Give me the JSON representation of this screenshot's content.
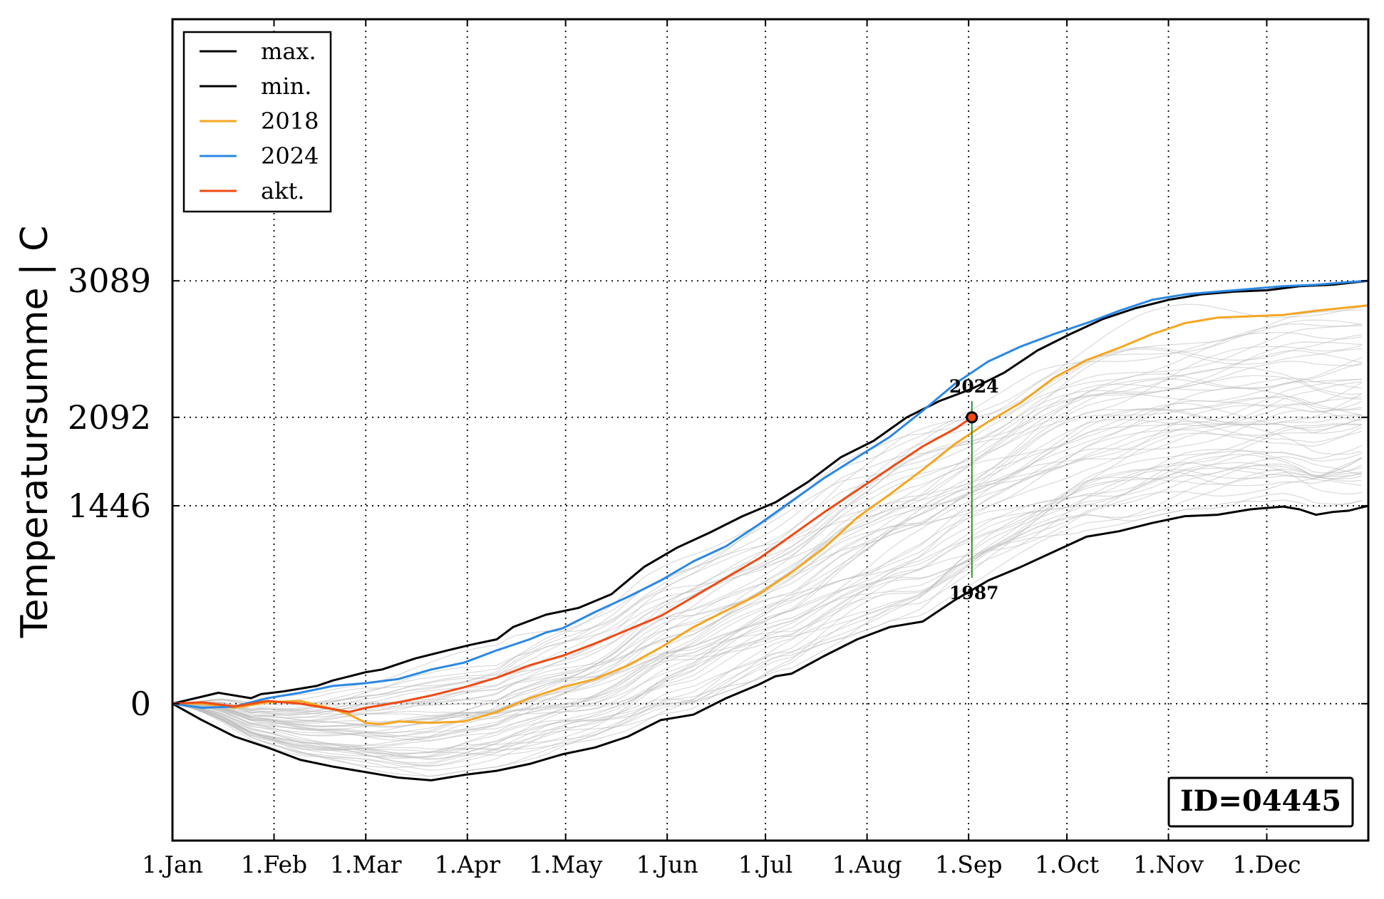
{
  "chart_data": {
    "type": "line",
    "title": "",
    "xlabel": "",
    "ylabel": "Temperatursumme | C",
    "x_ticks": [
      "1.Jan",
      "1.Feb",
      "1.Mar",
      "1.Apr",
      "1.May",
      "1.Jun",
      "1.Jul",
      "1.Aug",
      "1.Sep",
      "1.Oct",
      "1.Nov",
      "1.Dec"
    ],
    "x_tick_days": [
      1,
      32,
      60,
      91,
      121,
      152,
      182,
      213,
      244,
      274,
      305,
      335
    ],
    "x_range_days": [
      1,
      366
    ],
    "y_ticks": [
      "3089",
      "2092",
      "1446",
      "0"
    ],
    "y_tick_values": [
      3089,
      2092,
      1446,
      0
    ],
    "ylim": [
      -1000,
      5000
    ],
    "grid": "dotted, at tick positions",
    "legend": {
      "placement": "top-left",
      "entries": [
        {
          "label": "max.",
          "color": "#000000"
        },
        {
          "label": "min.",
          "color": "#000000"
        },
        {
          "label": "2018",
          "color": "#f5a623"
        },
        {
          "label": "2024",
          "color": "#2b88e3"
        },
        {
          "label": "akt.",
          "color": "#f04a14"
        }
      ]
    },
    "series": [
      {
        "name": "max.",
        "color": "#000000",
        "width": 3,
        "days": [
          1,
          15,
          20,
          25,
          28,
          35,
          45,
          50,
          55,
          60,
          65,
          75,
          85,
          92,
          100,
          105,
          115,
          125,
          135,
          145,
          155,
          165,
          175,
          185,
          195,
          205,
          215,
          225,
          235,
          245,
          255,
          265,
          275,
          285,
          295,
          305,
          315,
          325,
          335,
          345,
          355,
          366
        ],
        "values": [
          0,
          80,
          60,
          40,
          70,
          90,
          130,
          170,
          200,
          230,
          250,
          330,
          390,
          430,
          470,
          560,
          650,
          700,
          800,
          1000,
          1140,
          1250,
          1370,
          1470,
          1620,
          1800,
          1920,
          2090,
          2210,
          2300,
          2420,
          2580,
          2700,
          2810,
          2890,
          2950,
          2990,
          3010,
          3020,
          3050,
          3060,
          3089
        ]
      },
      {
        "name": "min.",
        "color": "#000000",
        "width": 3,
        "days": [
          1,
          10,
          20,
          30,
          40,
          50,
          60,
          65,
          70,
          75,
          80,
          90,
          100,
          110,
          120,
          130,
          140,
          150,
          160,
          170,
          180,
          185,
          190,
          200,
          210,
          220,
          230,
          240,
          250,
          260,
          270,
          280,
          290,
          300,
          310,
          320,
          330,
          340,
          345,
          350,
          355,
          360,
          366
        ],
        "values": [
          0,
          -120,
          -240,
          -320,
          -410,
          -460,
          -500,
          -520,
          -540,
          -550,
          -560,
          -520,
          -490,
          -440,
          -370,
          -320,
          -240,
          -120,
          -80,
          40,
          140,
          200,
          220,
          350,
          470,
          560,
          600,
          760,
          900,
          1000,
          1110,
          1220,
          1260,
          1320,
          1370,
          1380,
          1420,
          1440,
          1420,
          1380,
          1400,
          1410,
          1446
        ]
      },
      {
        "name": "2018",
        "color": "#f5a623",
        "width": 3,
        "days": [
          1,
          10,
          20,
          30,
          40,
          50,
          55,
          60,
          65,
          70,
          80,
          90,
          100,
          110,
          120,
          130,
          140,
          150,
          160,
          170,
          180,
          190,
          200,
          210,
          220,
          230,
          240,
          250,
          260,
          270,
          280,
          290,
          300,
          310,
          320,
          330,
          340,
          350,
          366
        ],
        "values": [
          0,
          0,
          -30,
          10,
          20,
          -40,
          -80,
          -140,
          -150,
          -130,
          -140,
          -130,
          -60,
          40,
          120,
          180,
          280,
          410,
          560,
          680,
          800,
          960,
          1140,
          1360,
          1530,
          1710,
          1900,
          2060,
          2200,
          2380,
          2510,
          2600,
          2700,
          2780,
          2820,
          2830,
          2840,
          2870,
          2910
        ]
      },
      {
        "name": "2024",
        "color": "#2b88e3",
        "width": 3,
        "days": [
          1,
          10,
          20,
          30,
          40,
          50,
          60,
          70,
          80,
          90,
          100,
          110,
          115,
          120,
          130,
          140,
          150,
          160,
          170,
          180,
          190,
          200,
          210,
          220,
          230,
          240,
          250,
          260,
          270,
          280,
          290,
          300,
          310,
          320,
          330,
          340,
          350,
          360,
          366
        ],
        "values": [
          0,
          -30,
          -20,
          40,
          80,
          130,
          150,
          180,
          250,
          300,
          390,
          470,
          520,
          550,
          670,
          780,
          900,
          1040,
          1150,
          1310,
          1480,
          1650,
          1800,
          1950,
          2140,
          2340,
          2500,
          2610,
          2700,
          2780,
          2870,
          2950,
          2990,
          3010,
          3030,
          3050,
          3060,
          3080,
          3089
        ]
      },
      {
        "name": "akt.",
        "color": "#f04a14",
        "width": 3,
        "days": [
          1,
          10,
          20,
          30,
          40,
          50,
          55,
          60,
          70,
          80,
          90,
          100,
          110,
          120,
          130,
          140,
          150,
          160,
          170,
          180,
          190,
          200,
          210,
          220,
          230,
          240,
          245
        ],
        "values": [
          0,
          10,
          -20,
          20,
          0,
          -40,
          -60,
          -30,
          10,
          60,
          120,
          190,
          280,
          350,
          440,
          540,
          640,
          780,
          920,
          1060,
          1230,
          1400,
          1560,
          1720,
          1880,
          2010,
          2092
        ]
      }
    ],
    "current_marker": {
      "day": 245,
      "value": 2092
    },
    "range_annotations": [
      {
        "label": "2024",
        "day": 245,
        "value": 2210,
        "position": "above"
      },
      {
        "label": "1987",
        "day": 245,
        "value": 920,
        "position": "below"
      }
    ],
    "range_line_color": "#1a8a1a",
    "background_years_color": "#bbbbbb",
    "id_box": "ID=04445"
  }
}
